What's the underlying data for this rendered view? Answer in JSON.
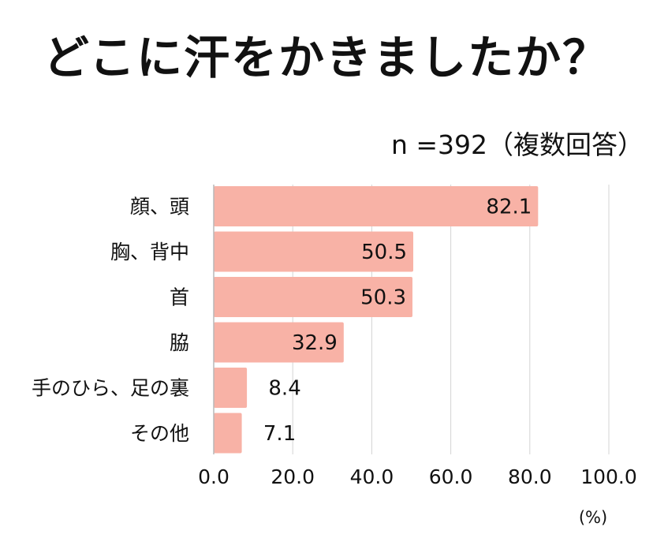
{
  "title": "どこに汗をかきましたか？",
  "sample_note": "n =392（複数回答）",
  "colors": {
    "bar": "#f8b2a6",
    "grid": "#d4d4d4",
    "axis": "#b8b8b8",
    "text": "#111111"
  },
  "chart_data": {
    "type": "bar",
    "orientation": "horizontal",
    "title": "どこに汗をかきましたか？",
    "categories": [
      "顔、頭",
      "胸、背中",
      "首",
      "脇",
      "手のひら、足の裏",
      "その他"
    ],
    "values": [
      82.1,
      50.5,
      50.3,
      32.9,
      8.4,
      7.1
    ],
    "value_labels": [
      "82.1",
      "50.5",
      "50.3",
      "32.9",
      "8.4",
      "7.1"
    ],
    "xlim": [
      0,
      100
    ],
    "xticks": [
      0,
      20,
      40,
      60,
      80,
      100
    ],
    "xtick_labels": [
      "0.0",
      "20.0",
      "40.0",
      "60.0",
      "80.0",
      "100.0"
    ],
    "xlabel": "(%)",
    "grid": true
  }
}
